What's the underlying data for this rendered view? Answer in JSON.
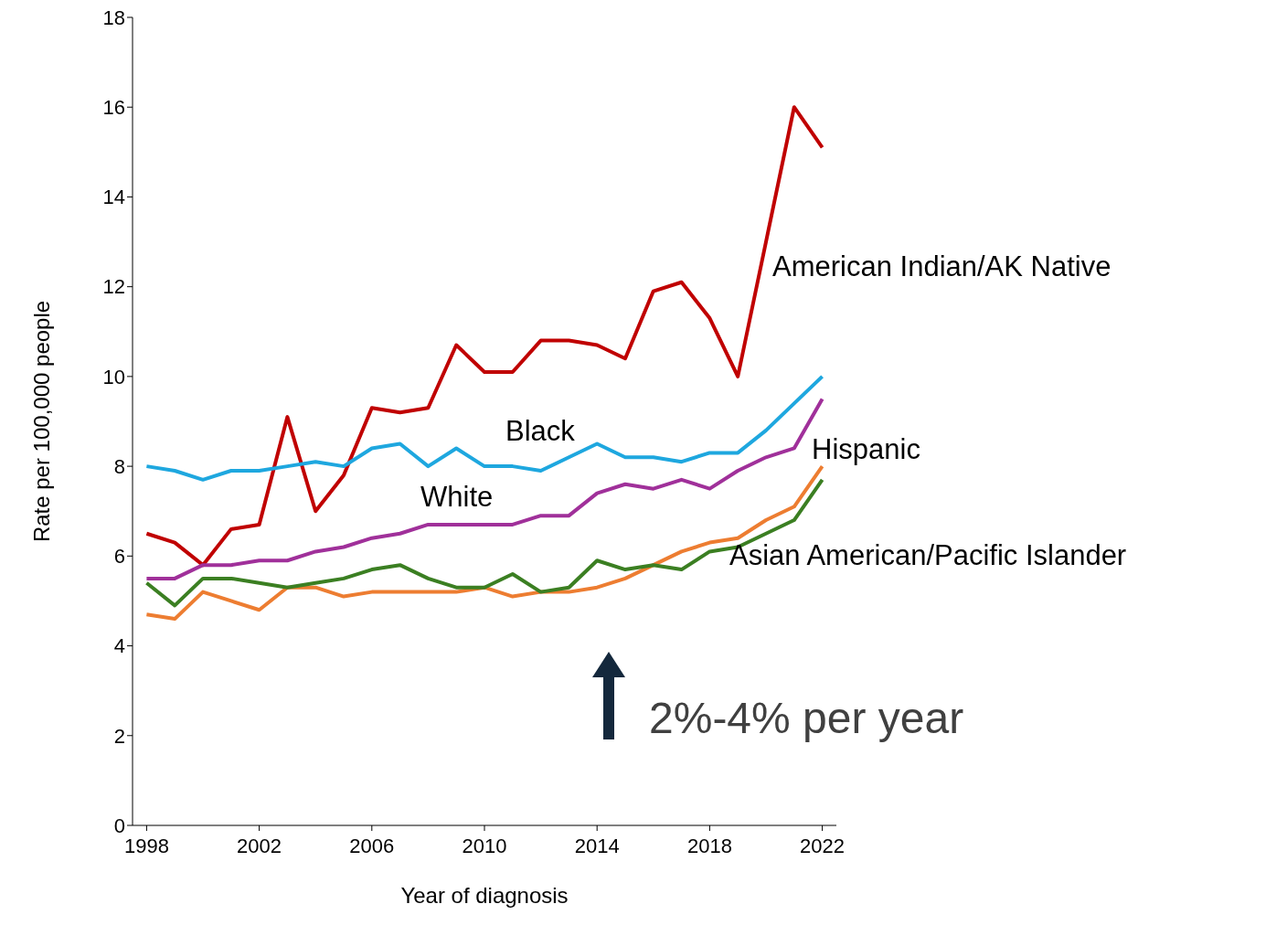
{
  "chart_data": {
    "type": "line",
    "xlabel": "Year of diagnosis",
    "ylabel": "Rate per 100,000 people",
    "x": [
      1998,
      1999,
      2000,
      2001,
      2002,
      2003,
      2004,
      2005,
      2006,
      2007,
      2008,
      2009,
      2010,
      2011,
      2012,
      2013,
      2014,
      2015,
      2016,
      2017,
      2018,
      2019,
      2020,
      2021,
      2022
    ],
    "xlim": [
      1997.5,
      2022.5
    ],
    "xticks": [
      1998,
      2002,
      2006,
      2010,
      2014,
      2018,
      2022
    ],
    "ylim": [
      0,
      18
    ],
    "yticks": [
      0,
      2,
      4,
      6,
      8,
      10,
      12,
      14,
      16,
      18
    ],
    "marker": "none",
    "line_style": "solid",
    "series": [
      {
        "name": "American Indian/AK Native",
        "color": "#c00000",
        "values": [
          6.5,
          6.3,
          5.8,
          6.6,
          6.7,
          9.1,
          7.0,
          7.8,
          9.3,
          9.2,
          9.3,
          10.7,
          10.1,
          10.1,
          10.8,
          10.8,
          10.7,
          10.4,
          11.9,
          12.1,
          11.3,
          10.0,
          13.0,
          16.0,
          15.1
        ]
      },
      {
        "name": "Black",
        "color": "#1ea7df",
        "values": [
          8.0,
          7.9,
          7.7,
          7.9,
          7.9,
          8.0,
          8.1,
          8.0,
          8.4,
          8.5,
          8.0,
          8.4,
          8.0,
          8.0,
          7.9,
          8.2,
          8.5,
          8.2,
          8.2,
          8.1,
          8.3,
          8.3,
          8.8,
          9.4,
          10.0
        ]
      },
      {
        "name": "White",
        "color": "#a0309a",
        "values": [
          5.5,
          5.5,
          5.8,
          5.8,
          5.9,
          5.9,
          6.1,
          6.2,
          6.4,
          6.5,
          6.7,
          6.7,
          6.7,
          6.7,
          6.9,
          6.9,
          7.4,
          7.6,
          7.5,
          7.7,
          7.5,
          7.9,
          8.2,
          8.4,
          9.5
        ]
      },
      {
        "name": "Hispanic",
        "color": "#ed7d31",
        "values": [
          4.7,
          4.6,
          5.2,
          5.0,
          4.8,
          5.3,
          5.3,
          5.1,
          5.2,
          5.2,
          5.2,
          5.2,
          5.3,
          5.1,
          5.2,
          5.2,
          5.3,
          5.5,
          5.8,
          6.1,
          6.3,
          6.4,
          6.8,
          7.1,
          8.0
        ]
      },
      {
        "name": "Asian American/Pacific Islander",
        "color": "#3b7f22",
        "values": [
          5.4,
          4.9,
          5.5,
          5.5,
          5.4,
          5.3,
          5.4,
          5.5,
          5.7,
          5.8,
          5.5,
          5.3,
          5.3,
          5.6,
          5.2,
          5.3,
          5.9,
          5.7,
          5.8,
          5.7,
          6.1,
          6.2,
          6.5,
          6.8,
          7.7
        ]
      }
    ],
    "annotations": [
      "2%-4% per year"
    ]
  }
}
